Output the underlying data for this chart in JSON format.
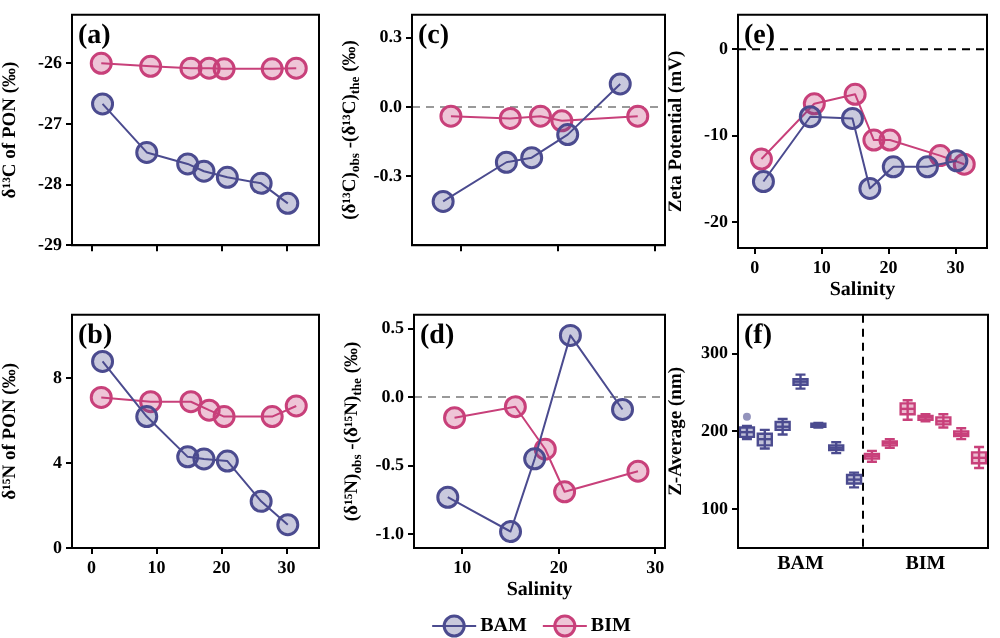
{
  "chart_data": [
    {
      "type": "line",
      "title": "(a)",
      "ylabel": "δ¹³C of PON (‰)",
      "xlim": [
        -3,
        35
      ],
      "xticks": [
        0,
        10,
        20,
        30
      ],
      "ylim": [
        -29,
        -25.2
      ],
      "yticks": [
        -29,
        -28,
        -27,
        -26
      ],
      "tick_labels": "y",
      "marker": "circle",
      "legend": false,
      "series": [
        {
          "color": "#4b4b8f",
          "x": [
            1.7,
            8.5,
            14.8,
            17.3,
            20.9,
            26.1,
            30.2
          ],
          "values": [
            -26.67,
            -27.47,
            -27.66,
            -27.78,
            -27.88,
            -27.98,
            -28.31
          ]
        },
        {
          "color": "#c8407a",
          "x": [
            1.5,
            9.1,
            15.3,
            18.1,
            20.4,
            27.8,
            31.5
          ],
          "values": [
            -26.0,
            -26.05,
            -26.08,
            -26.08,
            -26.09,
            -26.09,
            -26.08
          ]
        }
      ]
    },
    {
      "type": "line",
      "title": "(c)",
      "ylabel": "(δ¹³C)$_{obs}$ -(δ¹³C)$_{the}$ (‰)",
      "xlim": [
        5,
        31
      ],
      "xticks": [
        10,
        20,
        30
      ],
      "ylim": [
        -0.6,
        0.4
      ],
      "yticks": [
        {
          "value": -0.3,
          "label": "-0.3"
        },
        {
          "value": 0,
          "label": "0.0"
        },
        {
          "value": 0.3,
          "label": "0.3"
        }
      ],
      "tick_labels": "y",
      "marker": "circle",
      "legend": false,
      "ref_lines": [
        {
          "axis": "y",
          "value": 0,
          "color": "#999999",
          "line_style": "dashed"
        }
      ],
      "series": [
        {
          "color": "#4b4b8f",
          "x": [
            8.2,
            14.7,
            17.3,
            21.0,
            26.4
          ],
          "values": [
            -0.41,
            -0.24,
            -0.22,
            -0.12,
            0.1
          ]
        },
        {
          "color": "#c8407a",
          "x": [
            9.0,
            15.1,
            18.2,
            20.4,
            28.2
          ],
          "values": [
            -0.04,
            -0.05,
            -0.04,
            -0.06,
            -0.04
          ]
        }
      ]
    },
    {
      "type": "line",
      "title": "(e)",
      "ylabel": "Zeta Potential (mV)",
      "xlabel": "Salinity",
      "xlim": [
        -2.5,
        34.7
      ],
      "xticks": [
        0,
        10,
        20,
        30
      ],
      "ylim": [
        -23,
        4
      ],
      "yticks": [
        -20,
        -10,
        0
      ],
      "marker": "circle",
      "legend": false,
      "ref_lines": [
        {
          "axis": "y",
          "value": 0,
          "color": "#000000",
          "line_style": "dashed"
        }
      ],
      "series": [
        {
          "color": "#4b4b8f",
          "x": [
            1.3,
            8.3,
            14.6,
            17.2,
            20.7,
            25.8,
            30.2
          ],
          "values": [
            -15.3,
            -7.8,
            -8.0,
            -16.1,
            -13.6,
            -13.6,
            -12.9
          ]
        },
        {
          "color": "#c8407a",
          "x": [
            1.0,
            8.9,
            15.0,
            17.8,
            20.2,
            27.7,
            31.3
          ],
          "values": [
            -12.7,
            -6.3,
            -5.2,
            -10.5,
            -10.5,
            -12.3,
            -13.3
          ]
        }
      ]
    },
    {
      "type": "line",
      "title": "(b)",
      "ylabel": "δ¹⁵N of PON (‰)",
      "xlim": [
        -3,
        35
      ],
      "xticks": [
        0,
        10,
        20,
        30
      ],
      "ylim": [
        0,
        11
      ],
      "yticks": [
        0,
        4,
        8
      ],
      "marker": "circle",
      "legend": false,
      "series": [
        {
          "color": "#4b4b8f",
          "x": [
            1.7,
            8.5,
            14.8,
            17.3,
            20.9,
            26.1,
            30.2
          ],
          "values": [
            8.8,
            6.2,
            4.3,
            4.2,
            4.1,
            2.2,
            1.1
          ]
        },
        {
          "color": "#c8407a",
          "x": [
            1.5,
            9.1,
            15.3,
            18.1,
            20.4,
            27.8,
            31.5
          ],
          "values": [
            7.1,
            6.9,
            6.9,
            6.5,
            6.2,
            6.2,
            6.7
          ]
        }
      ]
    },
    {
      "type": "line",
      "title": "(d)",
      "ylabel": "(δ¹⁵N)$_{obs}$ -(δ¹⁵N)$_{the}$ (‰)",
      "xlabel": "Salinity",
      "xlim": [
        5,
        31
      ],
      "xticks": [
        10,
        20,
        30
      ],
      "ylim": [
        -1.1,
        0.6
      ],
      "yticks": [
        {
          "value": -1,
          "label": "-1.0"
        },
        {
          "value": -0.5,
          "label": "-0.5"
        },
        {
          "value": 0,
          "label": "0.0"
        },
        {
          "value": 0.5,
          "label": "0.5"
        }
      ],
      "marker": "circle",
      "legend": "bottom",
      "ref_lines": [
        {
          "axis": "y",
          "value": 0,
          "color": "#999999",
          "line_style": "dashed"
        }
      ],
      "series": [
        {
          "name": "BAM",
          "color": "#4b4b8f",
          "x": [
            8.5,
            15.0,
            17.5,
            21.2,
            26.6
          ],
          "values": [
            -0.73,
            -0.98,
            -0.45,
            0.45,
            -0.09
          ]
        },
        {
          "name": "BIM",
          "color": "#c8407a",
          "x": [
            9.2,
            15.5,
            18.6,
            20.6,
            28.2
          ],
          "values": [
            -0.15,
            -0.07,
            -0.38,
            -0.69,
            -0.54
          ]
        }
      ]
    },
    {
      "type": "box",
      "title": "(f)",
      "ylabel": "Z-Average (nm)",
      "categories": [
        null,
        null,
        null,
        "BAM",
        null,
        null,
        null,
        null,
        null,
        null,
        "BIM",
        null,
        null,
        null
      ],
      "ylim": [
        50,
        350
      ],
      "yticks": [
        100,
        200,
        300
      ],
      "legend": false,
      "series": [
        {
          "color": "#4b4b8f",
          "boxes": [
            {
              "low": 190,
              "q1": 193,
              "median": 199,
              "q3": 205,
              "high": 207,
              "outliers": [
                219
              ]
            },
            {
              "low": 178,
              "q1": 182,
              "median": 190,
              "q3": 197,
              "high": 202
            },
            {
              "low": 196,
              "q1": 202,
              "median": 206,
              "q3": 212,
              "high": 216
            },
            {
              "low": 255,
              "q1": 260,
              "median": 264,
              "q3": 267,
              "high": 273
            },
            {
              "low": 205,
              "q1": 206,
              "median": 208,
              "q3": 210,
              "high": 211
            },
            {
              "low": 172,
              "q1": 176,
              "median": 179,
              "q3": 182,
              "high": 186
            },
            {
              "low": 128,
              "q1": 133,
              "median": 138,
              "q3": 144,
              "high": 147
            },
            null,
            null,
            null,
            null,
            null,
            null,
            null
          ]
        },
        {
          "color": "#c8407a",
          "boxes": [
            null,
            null,
            null,
            null,
            null,
            null,
            null,
            {
              "low": 161,
              "q1": 165,
              "median": 168,
              "q3": 171,
              "high": 175
            },
            {
              "low": 179,
              "q1": 182,
              "median": 185,
              "q3": 187,
              "high": 190
            },
            {
              "low": 215,
              "q1": 222,
              "median": 229,
              "q3": 236,
              "high": 240
            },
            {
              "low": 213,
              "q1": 215,
              "median": 218,
              "q3": 220,
              "high": 222
            },
            {
              "low": 205,
              "q1": 209,
              "median": 213,
              "q3": 218,
              "high": 222
            },
            {
              "low": 190,
              "q1": 194,
              "median": 197,
              "q3": 200,
              "high": 204
            },
            {
              "low": 153,
              "q1": 159,
              "median": 166,
              "q3": 173,
              "high": 180
            }
          ]
        }
      ]
    }
  ]
}
